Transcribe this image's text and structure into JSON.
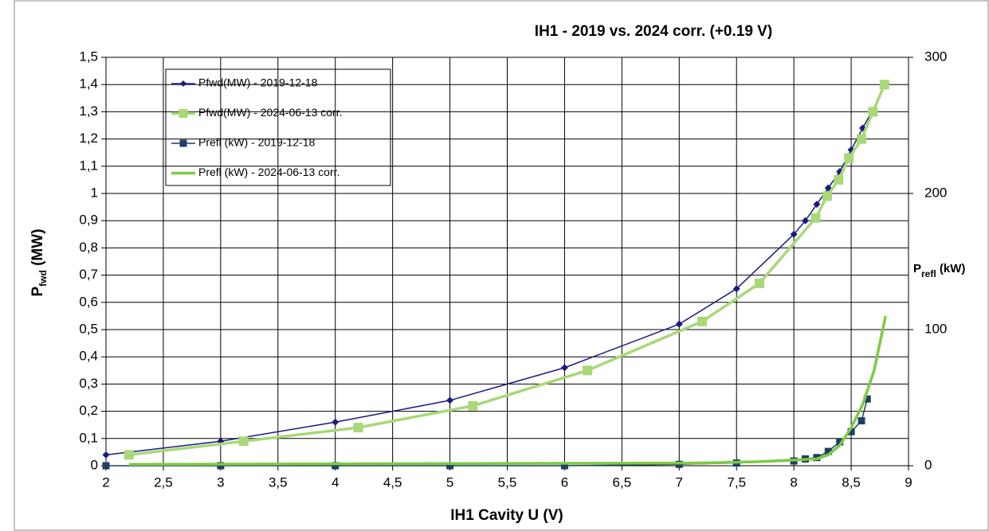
{
  "chart_data": {
    "type": "line",
    "title": "IH1 - 2019 vs. 2024 corr. (+0.19 V)",
    "xlabel": "IH1 Cavity U (V)",
    "ylabel": [
      "P",
      "fwd",
      " (MW)"
    ],
    "y2label": [
      "P",
      "refl",
      " (kW)"
    ],
    "xlim": [
      2,
      9
    ],
    "xticks": [
      2,
      {
        "value": 2.5,
        "label": "2,5"
      },
      3,
      {
        "value": 3.5,
        "label": "3,5"
      },
      4,
      {
        "value": 4.5,
        "label": "4,5"
      },
      5,
      {
        "value": 5.5,
        "label": "5,5"
      },
      6,
      {
        "value": 6.5,
        "label": "6,5"
      },
      7,
      {
        "value": 7.5,
        "label": "7,5"
      },
      8,
      {
        "value": 8.5,
        "label": "8,5"
      },
      9
    ],
    "ylim": [
      0,
      1.5
    ],
    "yticks": [
      0,
      {
        "value": 0.1,
        "label": "0,1"
      },
      {
        "value": 0.2,
        "label": "0,2"
      },
      {
        "value": 0.3,
        "label": "0,3"
      },
      {
        "value": 0.4,
        "label": "0,4"
      },
      {
        "value": 0.5,
        "label": "0,5"
      },
      {
        "value": 0.6,
        "label": "0,6"
      },
      {
        "value": 0.7,
        "label": "0,7"
      },
      {
        "value": 0.8,
        "label": "0,8"
      },
      {
        "value": 0.9,
        "label": "0,9"
      },
      1,
      {
        "value": 1.1,
        "label": "1,1"
      },
      {
        "value": 1.2,
        "label": "1,2"
      },
      {
        "value": 1.3,
        "label": "1,3"
      },
      {
        "value": 1.4,
        "label": "1,4"
      },
      {
        "value": 1.5,
        "label": "1,5"
      }
    ],
    "y2lim": [
      0,
      300
    ],
    "y2ticks": [
      0,
      100,
      200,
      300
    ],
    "grid": true,
    "legend": "upper left",
    "series": [
      {
        "name": "Pfwd(MW) - 2019-12-18",
        "color": "#1a1a80",
        "marker": "diamond",
        "width": 1.5,
        "x": [
          2,
          3,
          4,
          5,
          6,
          7,
          7.5,
          8,
          8.1,
          8.2,
          8.3,
          8.4,
          8.5,
          8.6,
          8.68
        ],
        "values": [
          0.04,
          0.09,
          0.16,
          0.24,
          0.36,
          0.52,
          0.65,
          0.85,
          0.9,
          0.96,
          1.02,
          1.08,
          1.16,
          1.24,
          1.3
        ]
      },
      {
        "name": "Pfwd(MW) - 2024-06-13 corr.",
        "color": "#a8d878",
        "marker": "square",
        "width": 3.5,
        "x": [
          2.2,
          3.2,
          4.2,
          5.2,
          6.2,
          7.2,
          7.7,
          8.19,
          8.29,
          8.39,
          8.48,
          8.59,
          8.69,
          8.79
        ],
        "values": [
          0.04,
          0.09,
          0.14,
          0.22,
          0.35,
          0.53,
          0.67,
          0.91,
          0.99,
          1.05,
          1.13,
          1.2,
          1.3,
          1.4
        ]
      },
      {
        "name": "Prefl (kW) - 2019-12-18",
        "color": "#1f3f66",
        "marker": "square",
        "width": 1.5,
        "axis": "y2",
        "x": [
          2,
          3,
          4,
          5,
          6,
          7,
          7.5,
          8,
          8.1,
          8.2,
          8.3,
          8.4,
          8.5,
          8.59,
          8.64
        ],
        "values": [
          0,
          0,
          0,
          0,
          0,
          1,
          2,
          3.5,
          5,
          6,
          10.5,
          17.5,
          25,
          33,
          49
        ]
      },
      {
        "name": "Prefl (kW) - 2024-06-13 corr.",
        "color": "#7ccc40",
        "marker": "none",
        "width": 3.5,
        "axis": "y2",
        "x": [
          2.2,
          7.2,
          7.7,
          8.2,
          8.3,
          8.4,
          8.5,
          8.6,
          8.7,
          8.8
        ],
        "values": [
          1,
          2,
          3,
          5,
          8,
          15,
          28,
          45,
          70,
          110
        ]
      }
    ]
  }
}
